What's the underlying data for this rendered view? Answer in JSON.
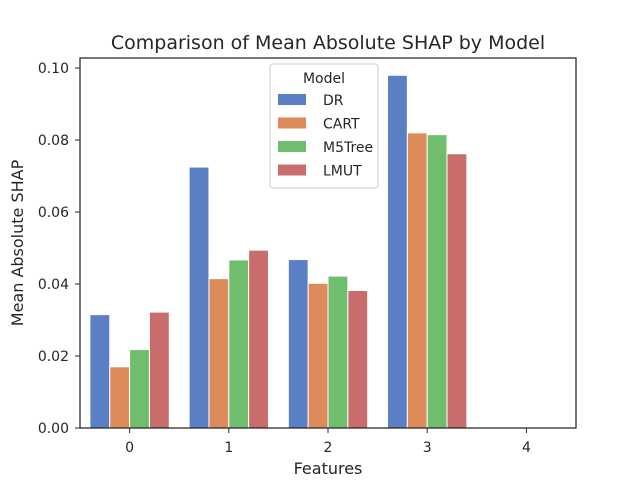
{
  "chart_data": {
    "type": "bar",
    "title": "Comparison of Mean Absolute SHAP by Model",
    "xlabel": "Features",
    "ylabel": "Mean Absolute SHAP",
    "categories": [
      "0",
      "1",
      "2",
      "3",
      "4"
    ],
    "ylim": [
      0,
      0.1028
    ],
    "yticks": [
      "0.00",
      "0.02",
      "0.04",
      "0.06",
      "0.08",
      "0.10"
    ],
    "grid": false,
    "legend": {
      "title": "Model",
      "placement": "top-center"
    },
    "series": [
      {
        "name": "DR",
        "color": "#5b7fc5",
        "values": [
          0.0315,
          0.0725,
          0.0468,
          0.098,
          0
        ]
      },
      {
        "name": "CART",
        "color": "#dd8b5b",
        "values": [
          0.017,
          0.0415,
          0.0402,
          0.082,
          0
        ]
      },
      {
        "name": "M5Tree",
        "color": "#70bd6e",
        "values": [
          0.0218,
          0.0467,
          0.0422,
          0.0815,
          0
        ]
      },
      {
        "name": "LMUT",
        "color": "#c86c6c",
        "values": [
          0.0322,
          0.0494,
          0.0382,
          0.0762,
          0
        ]
      }
    ]
  }
}
